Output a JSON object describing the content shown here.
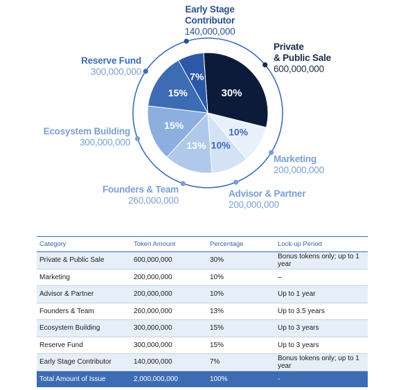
{
  "chart_data": {
    "type": "pie",
    "slices": [
      {
        "name": "Private\n& Public Sale",
        "amount": "600,000,000",
        "value": 30,
        "label": "30%",
        "color": "#0d1b3a",
        "text_color": "#ffffff",
        "label_color": "#1a2a44"
      },
      {
        "name": "Marketing",
        "amount": "200,000,000",
        "value": 10,
        "label": "10%",
        "color": "#e8f1fb",
        "text_color": "#3d6cb5",
        "label_color": "#7a9fd4"
      },
      {
        "name": "Advisor & Partner",
        "amount": "200,000,000",
        "value": 10,
        "label": "10%",
        "color": "#d3e2f4",
        "text_color": "#3d6cb5",
        "label_color": "#7a9fd4"
      },
      {
        "name": "Founders & Team",
        "amount": "260,000,000",
        "value": 13,
        "label": "13%",
        "color": "#b0c9ea",
        "text_color": "#ffffff",
        "label_color": "#7a9fd4"
      },
      {
        "name": "Ecosystem Building",
        "amount": "300,000,000",
        "value": 15,
        "label": "15%",
        "color": "#8cafe0",
        "text_color": "#ffffff",
        "label_color": "#7a9fd4"
      },
      {
        "name": "Reserve Fund",
        "amount": "300,000,000",
        "value": 15,
        "label": "15%",
        "color": "#3d6cb5",
        "text_color": "#ffffff",
        "label_color": "#3d6cb5"
      },
      {
        "name": "Early Stage\nContributor",
        "amount": "140,000,000",
        "value": 7,
        "label": "7%",
        "color": "#2b58a8",
        "text_color": "#ffffff",
        "label_color": "#2a4f90"
      }
    ]
  },
  "table": {
    "headers": [
      "Category",
      "Token Amount",
      "Percentage",
      "Lock-up Period"
    ],
    "rows": [
      [
        "Private & Public Sale",
        "600,000,000",
        "30%",
        "Bonus tokens only; up to 1 year"
      ],
      [
        "Marketing",
        "200,000,000",
        "10%",
        "–"
      ],
      [
        "Advisor & Partner",
        "200,000,000",
        "10%",
        "Up to 1 year"
      ],
      [
        "Founders & Team",
        "260,000,000",
        "13%",
        "Up to 3.5 years"
      ],
      [
        "Ecosystem Building",
        "300,000,000",
        "15%",
        "Up to 3 years"
      ],
      [
        "Reserve Fund",
        "300,000,000",
        "15%",
        "Up to 3 years"
      ],
      [
        "Early Stage Contributor",
        "140,000,000",
        "7%",
        "Bonus tokens only; up to 1 year"
      ]
    ],
    "total": [
      "Total Amount of Issue",
      "2,000,000,000",
      "100%",
      "-"
    ]
  }
}
